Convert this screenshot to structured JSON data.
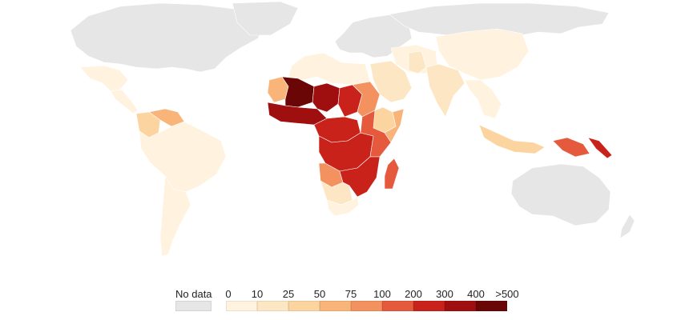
{
  "map": {
    "type": "choropleth",
    "no_data_color": "#e6e6e6",
    "legend": {
      "no_data_label": "No data",
      "ticks": [
        "0",
        "10",
        "25",
        "50",
        "75",
        "100",
        "200",
        "300",
        "400",
        ">500"
      ],
      "colors": [
        "#fff3e0",
        "#fde6c4",
        "#fcd4a0",
        "#f9b47a",
        "#f3915f",
        "#e55a3c",
        "#c9221a",
        "#a00f0f",
        "#6b0606"
      ]
    },
    "regions": [
      {
        "name": "mexico",
        "bin": 0
      },
      {
        "name": "central-america",
        "bin": 0
      },
      {
        "name": "venezuela",
        "bin": 3
      },
      {
        "name": "colombia",
        "bin": 2
      },
      {
        "name": "south-america-north",
        "bin": 0
      },
      {
        "name": "south-america-south",
        "bin": 0
      },
      {
        "name": "north-africa",
        "bin": 0
      },
      {
        "name": "mauritania",
        "bin": 3
      },
      {
        "name": "mali",
        "bin": 8
      },
      {
        "name": "west-africa-coast",
        "bin": 7
      },
      {
        "name": "niger",
        "bin": 7
      },
      {
        "name": "chad",
        "bin": 6
      },
      {
        "name": "sudan",
        "bin": 4
      },
      {
        "name": "ethiopia",
        "bin": 2
      },
      {
        "name": "somalia",
        "bin": 3
      },
      {
        "name": "central-africa",
        "bin": 6
      },
      {
        "name": "drc",
        "bin": 6
      },
      {
        "name": "east-africa",
        "bin": 5
      },
      {
        "name": "angola",
        "bin": 4
      },
      {
        "name": "zambia-mozambique",
        "bin": 6
      },
      {
        "name": "namibia-botswana",
        "bin": 1
      },
      {
        "name": "south-africa",
        "bin": 0
      },
      {
        "name": "madagascar",
        "bin": 5
      },
      {
        "name": "arabia",
        "bin": 1
      },
      {
        "name": "iran-afghanistan",
        "bin": 0
      },
      {
        "name": "pakistan",
        "bin": 1
      },
      {
        "name": "india",
        "bin": 1
      },
      {
        "name": "southeast-asia",
        "bin": 0
      },
      {
        "name": "china",
        "bin": 0
      },
      {
        "name": "indonesia",
        "bin": 2
      },
      {
        "name": "papua-new-guinea",
        "bin": 5
      },
      {
        "name": "solomon-islands",
        "bin": 6
      }
    ]
  }
}
